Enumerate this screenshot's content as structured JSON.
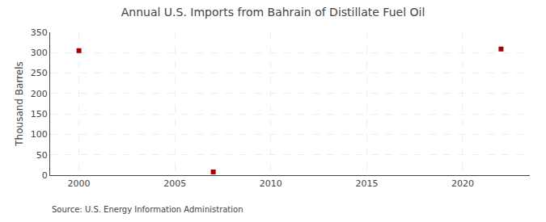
{
  "chart_data": {
    "type": "scatter",
    "title": "Annual U.S. Imports from Bahrain of Distillate Fuel Oil",
    "ylabel": "Thousand Barrels",
    "source": "Source: U.S. Energy Information Administration",
    "x": [
      2000,
      2007,
      2022
    ],
    "values": [
      305,
      8,
      309
    ],
    "color": "#AA0000",
    "marker": "square",
    "xlim": [
      1998.5,
      2023.5
    ],
    "ylim": [
      0,
      350
    ],
    "xticks": [
      2000,
      2005,
      2010,
      2015,
      2020
    ],
    "yticks": [
      0,
      50,
      100,
      150,
      200,
      250,
      300,
      350
    ],
    "grid": true
  }
}
